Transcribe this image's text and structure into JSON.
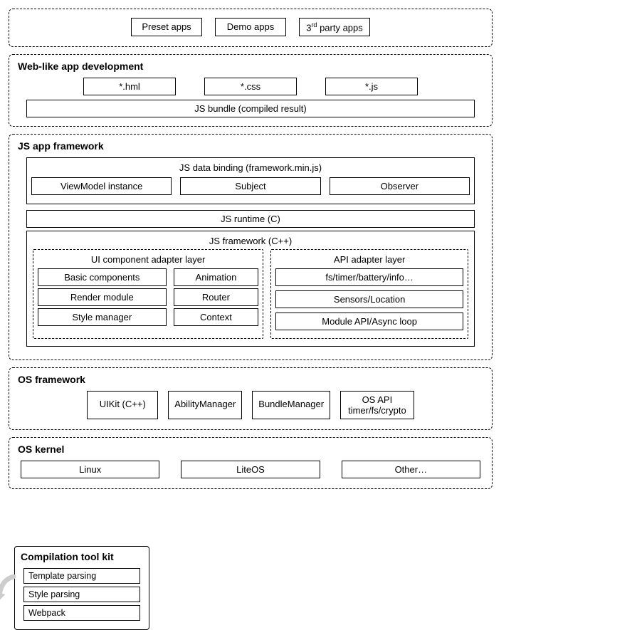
{
  "diagram": {
    "type": "architecture-block-diagram",
    "background_color": "#ffffff",
    "border_color": "#000000",
    "text_color": "#000000",
    "arrow_color": "#cccccc",
    "font_family": "Arial",
    "font_size_base": 13,
    "font_size_title": 14
  },
  "apps_row": {
    "items": [
      "Preset apps",
      "Demo apps",
      "3ʳᵈ party apps"
    ]
  },
  "web_dev": {
    "title": "Web-like app development",
    "files": [
      "*.hml",
      "*.css",
      "*.js"
    ],
    "bundle": "JS bundle (compiled result)"
  },
  "toolkit": {
    "title": "Compilation tool kit",
    "items": [
      "Template parsing",
      "Style parsing",
      "Webpack"
    ]
  },
  "js_fw": {
    "title": "JS app framework",
    "data_binding": {
      "title": "JS data binding (framework.min.js)",
      "items": [
        "ViewModel instance",
        "Subject",
        "Observer"
      ]
    },
    "runtime": "JS runtime (C)",
    "cpp_fw": {
      "title": "JS framework (C++)",
      "ui_adapter": {
        "title": "UI component adapter layer",
        "rows": [
          [
            "Basic components",
            "Animation"
          ],
          [
            "Render module",
            "Router"
          ],
          [
            "Style manager",
            "Context"
          ]
        ]
      },
      "api_adapter": {
        "title": "API adapter layer",
        "items": [
          "fs/timer/battery/info…",
          "Sensors/Location",
          "Module API/Async loop"
        ]
      }
    }
  },
  "os_fw": {
    "title": "OS framework",
    "items": [
      "UIKit (C++)",
      "AbilityManager",
      "BundleManager",
      "OS API timer/fs/crypto"
    ]
  },
  "os_kernel": {
    "title": "OS kernel",
    "items": [
      "Linux",
      "LiteOS",
      "Other…"
    ]
  }
}
